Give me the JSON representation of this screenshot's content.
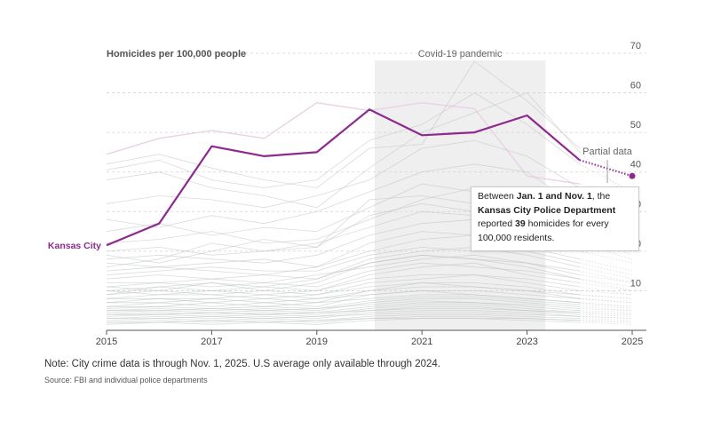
{
  "chart_data": {
    "type": "line",
    "title": "Homicides per 100,000 people",
    "xlabel": "",
    "ylabel": "",
    "xlim": [
      2015,
      2025
    ],
    "ylim": [
      0,
      70
    ],
    "x_ticks": [
      "2015",
      "2017",
      "2019",
      "2021",
      "2023",
      "2025"
    ],
    "y_ticks": [
      "10",
      "20",
      "30",
      "40",
      "50",
      "60",
      "70"
    ],
    "grid": true,
    "shaded_period": {
      "label": "Covid-19 pandemic",
      "start": 2020.1,
      "end": 2023.35
    },
    "highlight_series": {
      "name": "Kansas City",
      "color": "#8e2a8e",
      "x": [
        2015,
        2016,
        2017,
        2018,
        2019,
        2020,
        2021,
        2022,
        2023,
        2024
      ],
      "values": [
        21.5,
        27,
        46.5,
        44,
        45,
        55.8,
        49.3,
        50,
        54.3,
        43
      ]
    },
    "partial_segment": {
      "label": "Partial data",
      "x": [
        2024,
        2025
      ],
      "values": [
        43,
        39
      ]
    },
    "background_series": [
      {
        "values": [
          44.5,
          48.5,
          50.5,
          48.5,
          57.5,
          55.5,
          57.5,
          56,
          39,
          37,
          35
        ],
        "color": "#e8d2e4"
      },
      {
        "values": [
          42,
          44.5,
          41,
          38,
          36,
          46,
          47,
          68,
          58,
          46,
          38
        ]
      },
      {
        "values": [
          40.5,
          43,
          38,
          36,
          38,
          48,
          52,
          60,
          52,
          42,
          35
        ]
      },
      {
        "values": [
          38,
          40,
          36,
          34,
          31,
          41,
          50,
          55,
          60,
          45,
          33
        ]
      },
      {
        "values": [
          32,
          34,
          33,
          31,
          34,
          38,
          46,
          48,
          44,
          36,
          29
        ]
      },
      {
        "values": [
          28,
          26,
          29,
          27,
          30,
          35,
          40,
          42,
          40,
          31,
          27
        ]
      },
      {
        "values": [
          25,
          27,
          24,
          26,
          25,
          31,
          37,
          35,
          33,
          29,
          24
        ]
      },
      {
        "values": [
          22,
          23,
          25,
          22,
          23,
          28,
          33,
          36,
          31,
          27,
          22
        ]
      },
      {
        "values": [
          20,
          21,
          19,
          20,
          22,
          26,
          30,
          29,
          27,
          23,
          20
        ]
      },
      {
        "values": [
          18,
          19,
          18,
          17,
          19,
          24,
          27,
          28,
          26,
          22,
          18
        ]
      },
      {
        "values": [
          17,
          16,
          17,
          18,
          16,
          22,
          25,
          24,
          23,
          20,
          17
        ]
      },
      {
        "values": [
          15,
          16,
          15,
          14,
          16,
          20,
          23,
          24,
          21,
          18,
          15
        ]
      },
      {
        "values": [
          14,
          15,
          16,
          15,
          15,
          19,
          21,
          20,
          20,
          17,
          14
        ]
      },
      {
        "values": [
          13,
          14,
          13,
          14,
          13,
          18,
          20,
          21,
          19,
          16,
          13
        ]
      },
      {
        "values": [
          12,
          12,
          13,
          12,
          14,
          16,
          18,
          19,
          17,
          14,
          12
        ]
      },
      {
        "values": [
          11,
          12,
          11,
          12,
          11,
          15,
          17,
          16,
          15,
          13,
          11
        ]
      },
      {
        "values": [
          10,
          11,
          10,
          11,
          10,
          14,
          16,
          17,
          14,
          12,
          10
        ]
      },
      {
        "values": [
          10,
          9,
          10,
          9,
          10,
          13,
          14,
          14,
          13,
          11,
          9
        ]
      },
      {
        "values": [
          9,
          10,
          9,
          10,
          9,
          12,
          13,
          14,
          12,
          10,
          9
        ]
      },
      {
        "values": [
          8,
          9,
          9,
          8,
          9,
          11,
          12,
          12,
          11,
          9,
          8
        ]
      },
      {
        "values": [
          8,
          8,
          8,
          9,
          8,
          10,
          12,
          11,
          10,
          9,
          8
        ]
      },
      {
        "values": [
          7,
          8,
          7,
          8,
          7,
          10,
          11,
          11,
          10,
          8,
          7
        ]
      },
      {
        "values": [
          7,
          7,
          8,
          7,
          8,
          9,
          10,
          10,
          9,
          8,
          7
        ]
      },
      {
        "values": [
          6,
          7,
          6,
          7,
          6,
          9,
          10,
          9,
          8,
          7,
          6
        ]
      },
      {
        "values": [
          6,
          6,
          7,
          6,
          7,
          8,
          9,
          9,
          8,
          7,
          6
        ]
      },
      {
        "values": [
          5.5,
          6,
          5.5,
          6,
          5.5,
          7.5,
          8.5,
          8.5,
          7.5,
          6.5,
          5.5
        ]
      },
      {
        "values": [
          5,
          5.5,
          5,
          5.5,
          5,
          7,
          8,
          8,
          7,
          6,
          5
        ]
      },
      {
        "values": [
          5,
          5,
          5.5,
          5,
          5.5,
          6.5,
          7.5,
          7,
          6.5,
          5.5,
          5
        ]
      },
      {
        "values": [
          4.5,
          5,
          4.5,
          5,
          4.5,
          6,
          7,
          7,
          6,
          5,
          4.5
        ]
      },
      {
        "values": [
          4,
          4.5,
          4,
          4.5,
          4,
          5.5,
          6.5,
          6.5,
          5.5,
          4.5,
          4
        ]
      },
      {
        "values": [
          4,
          4,
          4.5,
          4,
          4.5,
          5,
          6,
          6,
          5,
          4.5,
          4
        ]
      },
      {
        "values": [
          3.5,
          4,
          3.5,
          4,
          3.5,
          5,
          5.5,
          5.5,
          5,
          4,
          3.5
        ]
      },
      {
        "values": [
          3,
          3.5,
          3,
          3.5,
          3,
          4.5,
          5,
          5,
          4.5,
          3.5,
          3
        ]
      },
      {
        "values": [
          3,
          3,
          3.5,
          3,
          3.5,
          4,
          4.5,
          4.5,
          4,
          3.5,
          3
        ]
      },
      {
        "values": [
          2.5,
          3,
          2.5,
          3,
          2.5,
          3.5,
          4,
          4,
          3.5,
          3,
          2.5
        ]
      },
      {
        "values": [
          2,
          2.5,
          2,
          2.5,
          2,
          3,
          3.5,
          3.5,
          3,
          2.5,
          2
        ]
      },
      {
        "values": [
          2,
          2,
          2.5,
          2,
          2.5,
          3,
          3,
          3,
          3,
          2.5,
          2
        ]
      },
      {
        "values": [
          1.5,
          2,
          1.5,
          2,
          1.5,
          2.5,
          3,
          3,
          2.5,
          2,
          1.5
        ]
      },
      {
        "values": [
          16,
          18,
          22,
          20,
          21,
          29,
          32,
          30,
          28,
          24,
          19
        ]
      },
      {
        "values": [
          19,
          17,
          20,
          23,
          21,
          33,
          34,
          32,
          30,
          26,
          21
        ]
      },
      {
        "values": [
          9,
          11,
          12,
          10,
          12,
          17,
          19,
          18,
          16,
          13,
          10
        ]
      },
      {
        "values": [
          11,
          10,
          12,
          11,
          13,
          17,
          19,
          18,
          17,
          15,
          12
        ]
      }
    ],
    "callout": {
      "pre": "Between ",
      "date_range": "Jan. 1 and Nov. 1",
      "mid": ", the ",
      "agency": "Kansas City Police Department",
      "reported": " reported ",
      "value": "39",
      "post": " homicides for every 100,000 residents."
    }
  },
  "footer": {
    "note": "Note: City crime data is through Nov. 1, 2025. U.S average only available through 2024.",
    "source": "Source: FBI and individual police departments"
  }
}
